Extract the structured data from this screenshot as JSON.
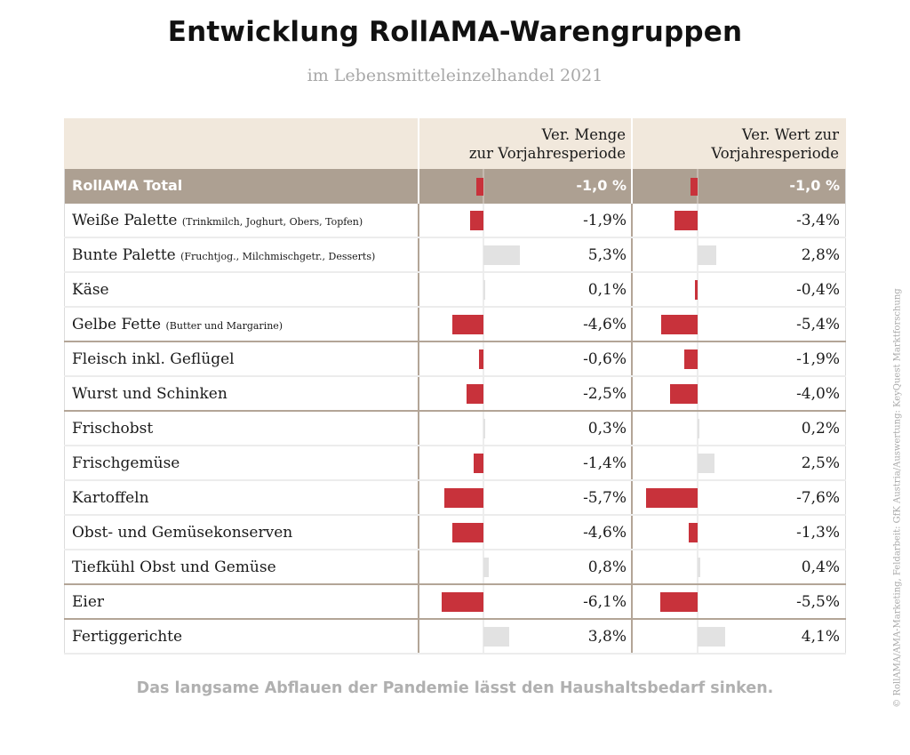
{
  "title": "Entwicklung RollAMA-Warengruppen",
  "subtitle": "im Lebensmitteleinzelhandel 2021",
  "footer": "Das langsame Abflauen der Pandemie lässt den Haushaltsbedarf sinken.",
  "credit": "© RollAMA/AMA-Marketing, Feldarbeit: GfK Austria/Auswertung: KeyQuest Marktforschung",
  "colors": {
    "negative": "#c8323b",
    "positive": "#e2e2e2",
    "header_bg": "#f1e8dc",
    "total_bg": "#ada092",
    "group_line": "#b3a597"
  },
  "chart_data": {
    "type": "table",
    "title": "Entwicklung RollAMA-Warengruppen",
    "subtitle": "im Lebensmitteleinzelhandel 2021",
    "columns": [
      {
        "line1": "Ver. Menge",
        "line2": "zur Vorjahresperiode"
      },
      {
        "line1": "Ver. Wert zur",
        "line2": "Vorjahresperiode"
      }
    ],
    "total": {
      "name": "RollAMA Total",
      "menge": -1.0,
      "wert": -1.0,
      "menge_label": "-1,0 %",
      "wert_label": "-1,0 %"
    },
    "rows": [
      {
        "name": "Weiße Palette",
        "sub": "(Trinkmilch, Joghurt, Obers, Topfen)",
        "menge": -1.9,
        "wert": -3.4,
        "menge_label": "-1,9%",
        "wert_label": "-3,4%",
        "group_end": false
      },
      {
        "name": "Bunte Palette",
        "sub": "(Fruchtjog., Milchmischgetr., Desserts)",
        "menge": 5.3,
        "wert": 2.8,
        "menge_label": "5,3%",
        "wert_label": "2,8%",
        "group_end": false
      },
      {
        "name": "Käse",
        "sub": "",
        "menge": 0.1,
        "wert": -0.4,
        "menge_label": "0,1%",
        "wert_label": "-0,4%",
        "group_end": false
      },
      {
        "name": "Gelbe Fette",
        "sub": "(Butter und Margarine)",
        "menge": -4.6,
        "wert": -5.4,
        "menge_label": "-4,6%",
        "wert_label": "-5,4%",
        "group_end": true
      },
      {
        "name": "Fleisch inkl. Geflügel",
        "sub": "",
        "menge": -0.6,
        "wert": -1.9,
        "menge_label": "-0,6%",
        "wert_label": "-1,9%",
        "group_end": false
      },
      {
        "name": "Wurst und Schinken",
        "sub": "",
        "menge": -2.5,
        "wert": -4.0,
        "menge_label": "-2,5%",
        "wert_label": "-4,0%",
        "group_end": true
      },
      {
        "name": "Frischobst",
        "sub": "",
        "menge": 0.3,
        "wert": 0.2,
        "menge_label": "0,3%",
        "wert_label": "0,2%",
        "group_end": false
      },
      {
        "name": "Frischgemüse",
        "sub": "",
        "menge": -1.4,
        "wert": 2.5,
        "menge_label": "-1,4%",
        "wert_label": "2,5%",
        "group_end": false
      },
      {
        "name": "Kartoffeln",
        "sub": "",
        "menge": -5.7,
        "wert": -7.6,
        "menge_label": "-5,7%",
        "wert_label": "-7,6%",
        "group_end": false
      },
      {
        "name": "Obst- und Gemüsekonserven",
        "sub": "",
        "menge": -4.6,
        "wert": -1.3,
        "menge_label": "-4,6%",
        "wert_label": "-1,3%",
        "group_end": false
      },
      {
        "name": "Tiefkühl Obst und Gemüse",
        "sub": "",
        "menge": 0.8,
        "wert": 0.4,
        "menge_label": "0,8%",
        "wert_label": "0,4%",
        "group_end": true
      },
      {
        "name": "Eier",
        "sub": "",
        "menge": -6.1,
        "wert": -5.5,
        "menge_label": "-6,1%",
        "wert_label": "-5,5%",
        "group_end": true
      },
      {
        "name": "Fertiggerichte",
        "sub": "",
        "menge": 3.8,
        "wert": 4.1,
        "menge_label": "3,8%",
        "wert_label": "4,1%",
        "group_end": false
      }
    ]
  }
}
